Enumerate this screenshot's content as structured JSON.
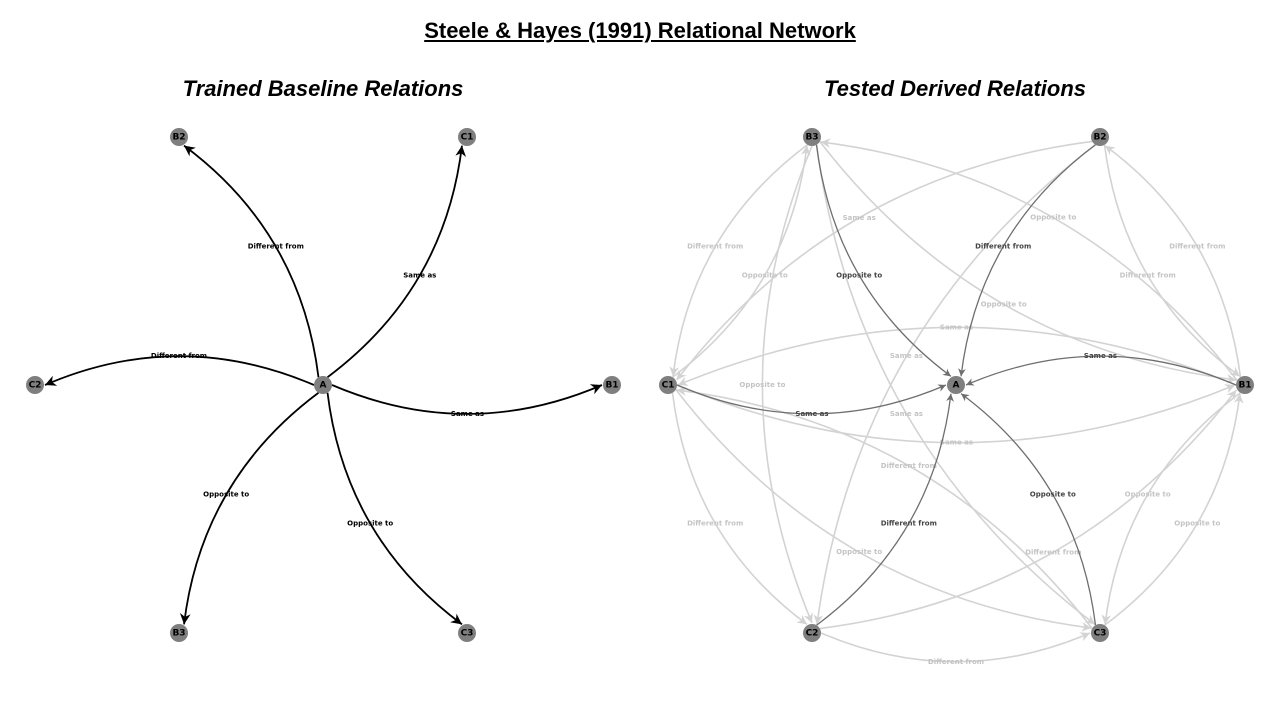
{
  "title": "Steele & Hayes (1991) Relational Network",
  "left_panel": {
    "title": "Trained Baseline Relations",
    "nodes": [
      "A",
      "B1",
      "B2",
      "B3",
      "C1",
      "C2",
      "C3"
    ],
    "edges": [
      {
        "from": "A",
        "to": "B2",
        "label": "Different from"
      },
      {
        "from": "A",
        "to": "C1",
        "label": "Same as"
      },
      {
        "from": "A",
        "to": "C2",
        "label": "Different from"
      },
      {
        "from": "A",
        "to": "B1",
        "label": "Same as"
      },
      {
        "from": "A",
        "to": "B3",
        "label": "Opposite to"
      },
      {
        "from": "A",
        "to": "C3",
        "label": "Opposite to"
      }
    ]
  },
  "right_panel": {
    "title": "Tested Derived Relations",
    "nodes": [
      "A",
      "B1",
      "B2",
      "B3",
      "C1",
      "C2",
      "C3"
    ],
    "edges": [
      {
        "from": "B1",
        "to": "A",
        "label": "Same as",
        "strength": "dark"
      },
      {
        "from": "B2",
        "to": "A",
        "label": "Different from",
        "strength": "dark"
      },
      {
        "from": "B3",
        "to": "A",
        "label": "Opposite to",
        "strength": "dark"
      },
      {
        "from": "C1",
        "to": "A",
        "label": "Same as",
        "strength": "dark"
      },
      {
        "from": "C2",
        "to": "A",
        "label": "Different from",
        "strength": "dark"
      },
      {
        "from": "C3",
        "to": "A",
        "label": "Opposite to",
        "strength": "dark"
      },
      {
        "from": "B1",
        "to": "C1",
        "label": "Same as",
        "strength": "light"
      },
      {
        "from": "C1",
        "to": "B1",
        "label": "Same as",
        "strength": "light"
      },
      {
        "from": "B2",
        "to": "C2",
        "label": "Same as",
        "strength": "light"
      },
      {
        "from": "B2",
        "to": "C1",
        "label": "Same as",
        "strength": "light"
      },
      {
        "from": "B3",
        "to": "C3",
        "label": "Same as",
        "strength": "light"
      },
      {
        "from": "B1",
        "to": "B2",
        "label": "Different from",
        "strength": "light"
      },
      {
        "from": "B2",
        "to": "B1",
        "label": "Different from",
        "strength": "light"
      },
      {
        "from": "B3",
        "to": "C1",
        "label": "Different from",
        "strength": "light"
      },
      {
        "from": "C1",
        "to": "C2",
        "label": "Different from",
        "strength": "light"
      },
      {
        "from": "B1",
        "to": "B3",
        "label": "Opposite to",
        "strength": "light"
      },
      {
        "from": "B3",
        "to": "B1",
        "label": "Opposite to",
        "strength": "light"
      },
      {
        "from": "C1",
        "to": "B3",
        "label": "Opposite to",
        "strength": "light"
      },
      {
        "from": "B1",
        "to": "C3",
        "label": "Opposite to",
        "strength": "light"
      },
      {
        "from": "C3",
        "to": "B1",
        "label": "Opposite to",
        "strength": "light"
      },
      {
        "from": "B3",
        "to": "C2",
        "label": "Opposite to",
        "strength": "light"
      },
      {
        "from": "C1",
        "to": "C3",
        "label": "Opposite to",
        "strength": "light"
      },
      {
        "from": "C3",
        "to": "C1",
        "label": "Different from",
        "strength": "light"
      },
      {
        "from": "C2",
        "to": "B1",
        "label": "Different from",
        "strength": "light"
      },
      {
        "from": "C2",
        "to": "C3",
        "label": "Different from",
        "strength": "light"
      }
    ]
  },
  "colors": {
    "node_fill": "#7f7f7f",
    "trained_edge": "#000000",
    "derived_dark": "#6e6e6e",
    "derived_light": "#d3d3d3",
    "derived_light_label": "#c4c4c4",
    "derived_dark_label": "#444444"
  }
}
